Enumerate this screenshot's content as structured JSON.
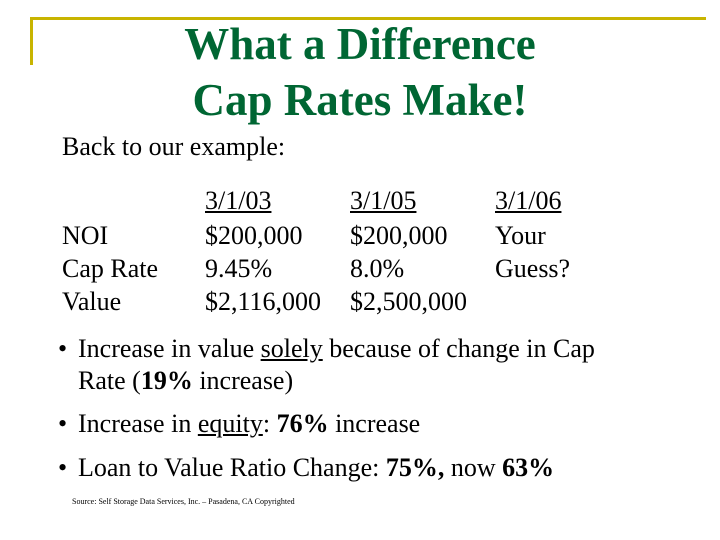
{
  "colors": {
    "title": "#006633",
    "frame": "#c8b400"
  },
  "title": {
    "line1": "What a Difference",
    "line2": "Cap Rates Make!"
  },
  "intro": "Back to our example:",
  "table": {
    "row_labels": [
      "NOI",
      "Cap Rate",
      "Value"
    ],
    "columns": [
      {
        "header": "3/1/03",
        "values": [
          "$200,000",
          "9.45%",
          "$2,116,000"
        ]
      },
      {
        "header": "3/1/05",
        "values": [
          "$200,000",
          "8.0%",
          "$2,500,000"
        ]
      },
      {
        "header": "3/1/06",
        "values": [
          "Your",
          "Guess?",
          ""
        ]
      }
    ]
  },
  "bullets": {
    "b1": {
      "pre": "Increase in value ",
      "underlined": "solely",
      "post": " because of change in Cap",
      "line2_pre": "Rate (",
      "bold": "19%",
      "line2_post": " increase)"
    },
    "b2": {
      "pre": "Increase in ",
      "underlined": "equity",
      "mid": ": ",
      "bold": "76%",
      "post": " increase"
    },
    "b3": {
      "pre": "Loan to Value Ratio Change: ",
      "bold1": "75%,",
      "mid": " now ",
      "bold2": "63%"
    }
  },
  "source": "Source: Self Storage Data Services, Inc. – Pasadena, CA Copyrighted"
}
